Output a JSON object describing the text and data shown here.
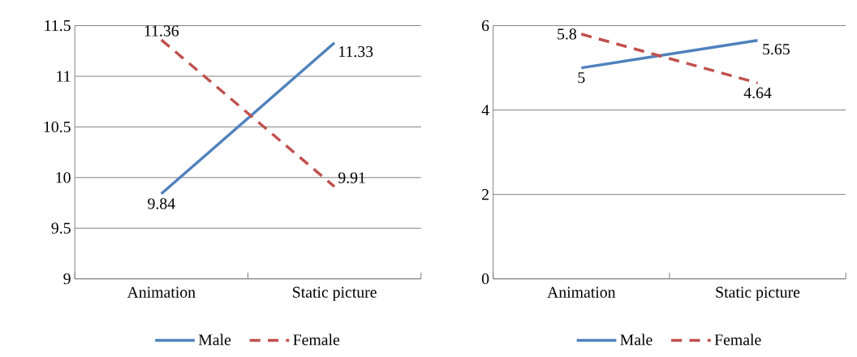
{
  "chart_data": [
    {
      "type": "line",
      "categories": [
        "Animation",
        "Static picture"
      ],
      "ylim": [
        9,
        11.5
      ],
      "yticks": [
        9,
        9.5,
        10,
        10.5,
        11,
        11.5
      ],
      "grid": "y",
      "legend": "bottom",
      "data_labels": true,
      "series": [
        {
          "name": "Male",
          "color": "#4f81bd",
          "line_style": "solid",
          "values": [
            9.84,
            11.33
          ]
        },
        {
          "name": "Female",
          "color": "#c0504d",
          "line_style": "dashed",
          "values": [
            11.36,
            9.91
          ]
        }
      ]
    },
    {
      "type": "line",
      "categories": [
        "Animation",
        "Static picture"
      ],
      "ylim": [
        0,
        6
      ],
      "yticks": [
        0,
        2,
        4,
        6
      ],
      "grid": "y",
      "legend": "bottom",
      "data_labels": true,
      "series": [
        {
          "name": "Male",
          "color": "#4f81bd",
          "line_style": "solid",
          "values": [
            5,
            5.65
          ]
        },
        {
          "name": "Female",
          "color": "#c0504d",
          "line_style": "dashed",
          "values": [
            5.8,
            4.64
          ]
        }
      ]
    }
  ]
}
